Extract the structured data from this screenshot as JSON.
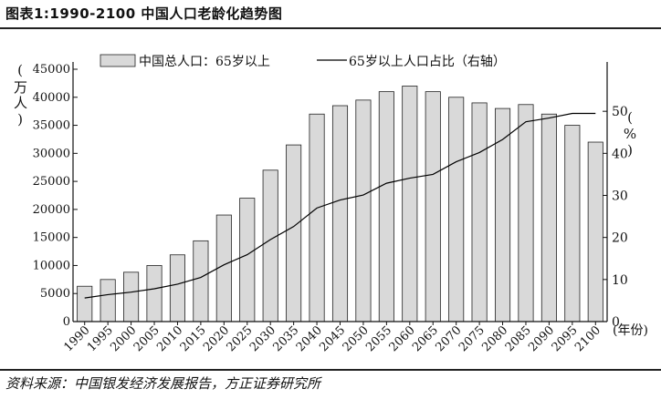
{
  "figure": {
    "title": "图表1:1990-2100 中国人口老龄化趋势图",
    "source": "资料来源：中国银发经济发展报告，方正证券研究所"
  },
  "chart_data": {
    "type": "bar",
    "categories": [
      "1990",
      "1995",
      "2000",
      "2005",
      "2010",
      "2015",
      "2020",
      "2025",
      "2030",
      "2035",
      "2040",
      "2045",
      "2050",
      "2055",
      "2060",
      "2065",
      "2070",
      "2075",
      "2080",
      "2085",
      "2090",
      "2095",
      "2100"
    ],
    "left_axis": {
      "unit_label": "(万人)",
      "range": [
        0,
        45000
      ],
      "ticks": [
        "0",
        "5000",
        "10000",
        "15000",
        "20000",
        "25000",
        "30000",
        "35000",
        "40000",
        "45000"
      ]
    },
    "right_axis": {
      "unit_label": "(%)",
      "range": [
        0,
        60
      ],
      "ticks": [
        "0",
        "10",
        "20",
        "30",
        "40",
        "50"
      ]
    },
    "x_unit_label": "(年份)",
    "legend_position": "top",
    "series": [
      {
        "name": "中国总人口：65岁以上",
        "kind": "bar",
        "axis": "left",
        "color": "#d9d9d9",
        "values": [
          6300,
          7500,
          8800,
          10000,
          11900,
          14400,
          19000,
          22000,
          27000,
          31500,
          37000,
          38500,
          39500,
          41000,
          42000,
          41000,
          40000,
          39000,
          38000,
          38700,
          37000,
          35000,
          32000
        ]
      },
      {
        "name": "65岁以上人口占比（右轴）",
        "kind": "line",
        "axis": "right",
        "color": "#000000",
        "values": [
          5.6,
          6.4,
          7.0,
          7.8,
          8.9,
          10.5,
          13.5,
          15.9,
          19.5,
          22.6,
          27.0,
          28.9,
          30.1,
          32.9,
          34.1,
          35.0,
          38.0,
          40.2,
          43.3,
          47.5,
          48.4,
          49.5,
          49.5
        ]
      }
    ]
  }
}
